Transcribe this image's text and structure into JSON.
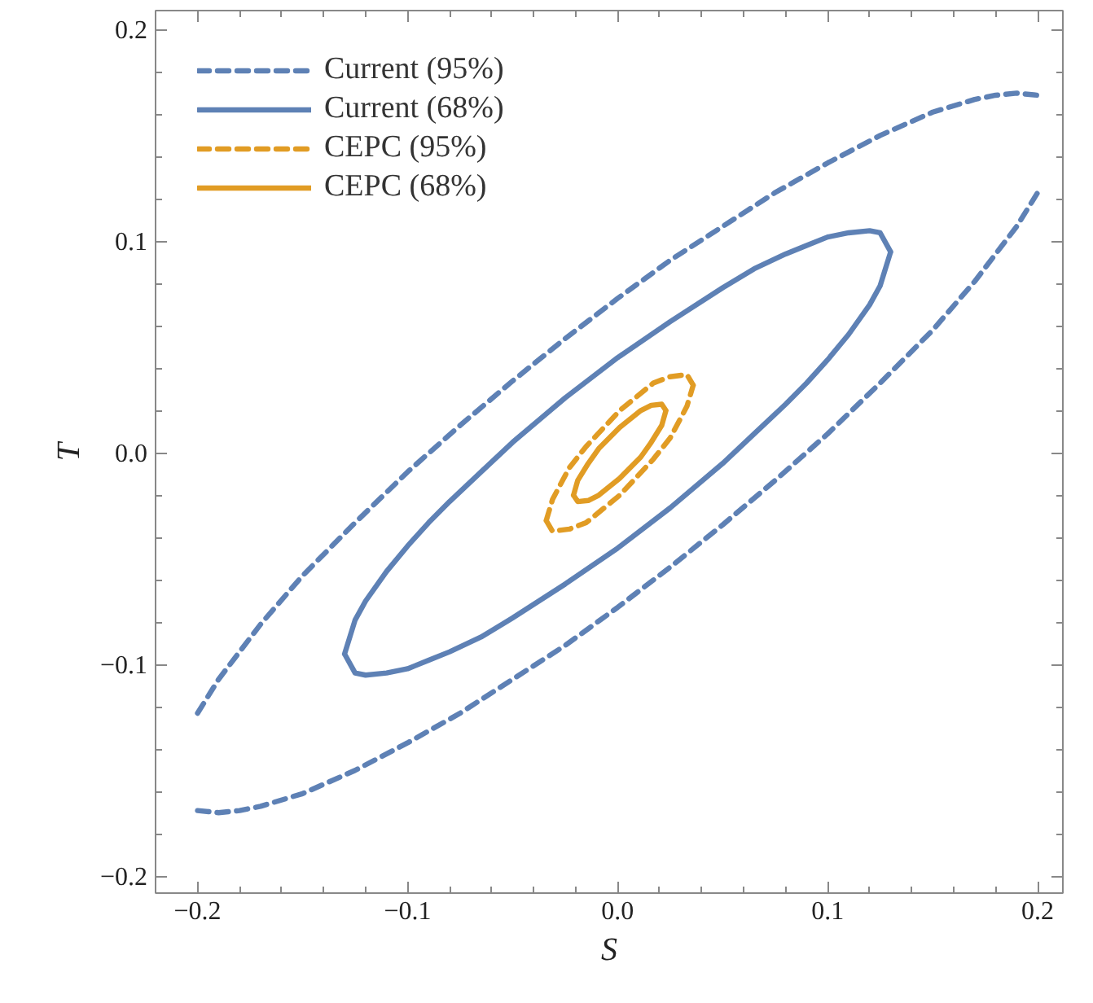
{
  "chart_data": {
    "type": "line",
    "xlabel": "S",
    "ylabel": "T",
    "xlim": [
      -0.22,
      0.212
    ],
    "ylim": [
      -0.208,
      0.209
    ],
    "xticks": [
      {
        "value": -0.2,
        "label": "−0.2"
      },
      {
        "value": -0.1,
        "label": "−0.1"
      },
      {
        "value": 0.0,
        "label": "0.0"
      },
      {
        "value": 0.1,
        "label": "0.1"
      },
      {
        "value": 0.2,
        "label": "0.2"
      }
    ],
    "yticks": [
      {
        "value": -0.2,
        "label": "−0.2"
      },
      {
        "value": -0.1,
        "label": "−0.1"
      },
      {
        "value": 0.0,
        "label": "0.0"
      },
      {
        "value": 0.1,
        "label": "0.1"
      },
      {
        "value": 0.2,
        "label": "0.2"
      }
    ],
    "grid": false,
    "legend": "top left",
    "series": [
      {
        "name": "Current (95%)",
        "color": "#5e81b5",
        "line_style": "dashed",
        "x": [
          -0.2,
          -0.19,
          -0.18,
          -0.17,
          -0.15,
          -0.125,
          -0.1,
          -0.075,
          -0.05,
          -0.025,
          0,
          0.025,
          0.05,
          0.075,
          0.1,
          0.125,
          0.15,
          0.17,
          0.18,
          0.19,
          0.2,
          null,
          -0.2,
          -0.19,
          -0.18,
          -0.17,
          -0.15,
          -0.125,
          -0.1,
          -0.075,
          -0.05,
          -0.025,
          0,
          0.025,
          0.05,
          0.075,
          0.1,
          0.125,
          0.15,
          0.17,
          0.18,
          0.19,
          0.2
        ],
        "values": [
          -0.123,
          -0.107,
          -0.094,
          -0.081,
          -0.058,
          -0.033,
          -0.009,
          0.013,
          0.034,
          0.054,
          0.073,
          0.091,
          0.107,
          0.123,
          0.137,
          0.15,
          0.161,
          0.167,
          0.169,
          0.17,
          0.169,
          null,
          -0.169,
          -0.17,
          -0.169,
          -0.167,
          -0.161,
          -0.15,
          -0.137,
          -0.123,
          -0.107,
          -0.091,
          -0.073,
          -0.054,
          -0.034,
          -0.013,
          0.009,
          0.033,
          0.058,
          0.081,
          0.094,
          0.107,
          0.123
        ]
      },
      {
        "name": "Current (68%)",
        "color": "#5e81b5",
        "line_style": "solid",
        "x": [
          -0.13,
          -0.125,
          -0.12,
          -0.11,
          -0.1,
          -0.09,
          -0.08,
          -0.065,
          -0.05,
          -0.025,
          0,
          0.025,
          0.05,
          0.065,
          0.08,
          0.09,
          0.1,
          0.11,
          0.12,
          0.125,
          0.13,
          null,
          -0.13,
          -0.125,
          -0.12,
          -0.11,
          -0.1,
          -0.09,
          -0.08,
          -0.065,
          -0.05,
          -0.025,
          0,
          0.025,
          0.05,
          0.065,
          0.08,
          0.09,
          0.1,
          0.11,
          0.12,
          0.125,
          0.13
        ],
        "values": [
          -0.095,
          -0.079,
          -0.07,
          -0.056,
          -0.044,
          -0.033,
          -0.023,
          -0.009,
          0.005,
          0.026,
          0.045,
          0.062,
          0.078,
          0.087,
          0.094,
          0.098,
          0.102,
          0.104,
          0.105,
          0.104,
          0.095,
          null,
          -0.095,
          -0.104,
          -0.105,
          -0.104,
          -0.102,
          -0.098,
          -0.094,
          -0.087,
          -0.078,
          -0.062,
          -0.045,
          -0.026,
          -0.005,
          0.009,
          0.023,
          0.033,
          0.044,
          0.056,
          0.07,
          0.079,
          0.095
        ]
      },
      {
        "name": "CEPC (95%)",
        "color": "#e19c24",
        "line_style": "dashed",
        "x": [
          -0.034,
          -0.031,
          -0.023,
          -0.015,
          0.001,
          0.017,
          0.025,
          0.033,
          0.036,
          null,
          -0.034,
          -0.031,
          -0.023,
          -0.015,
          0.001,
          0.017,
          0.025,
          0.033,
          0.036
        ],
        "values": [
          -0.032,
          -0.022,
          -0.007,
          0.003,
          0.02,
          0.033,
          0.036,
          0.037,
          0.032,
          null,
          -0.032,
          -0.037,
          -0.036,
          -0.033,
          -0.02,
          -0.003,
          0.007,
          0.022,
          0.032
        ]
      },
      {
        "name": "CEPC (68%)",
        "color": "#e19c24",
        "line_style": "solid",
        "x": [
          -0.021,
          -0.019,
          -0.014,
          -0.009,
          0.001,
          0.011,
          0.016,
          0.021,
          0.023,
          null,
          -0.021,
          -0.019,
          -0.014,
          -0.009,
          0.001,
          0.011,
          0.016,
          0.021,
          0.023
        ],
        "values": [
          -0.02,
          -0.013,
          -0.005,
          0.002,
          0.012,
          0.02,
          0.0225,
          0.023,
          0.02,
          null,
          -0.02,
          -0.023,
          -0.0225,
          -0.02,
          -0.012,
          -0.002,
          0.005,
          0.013,
          0.02
        ]
      }
    ]
  }
}
